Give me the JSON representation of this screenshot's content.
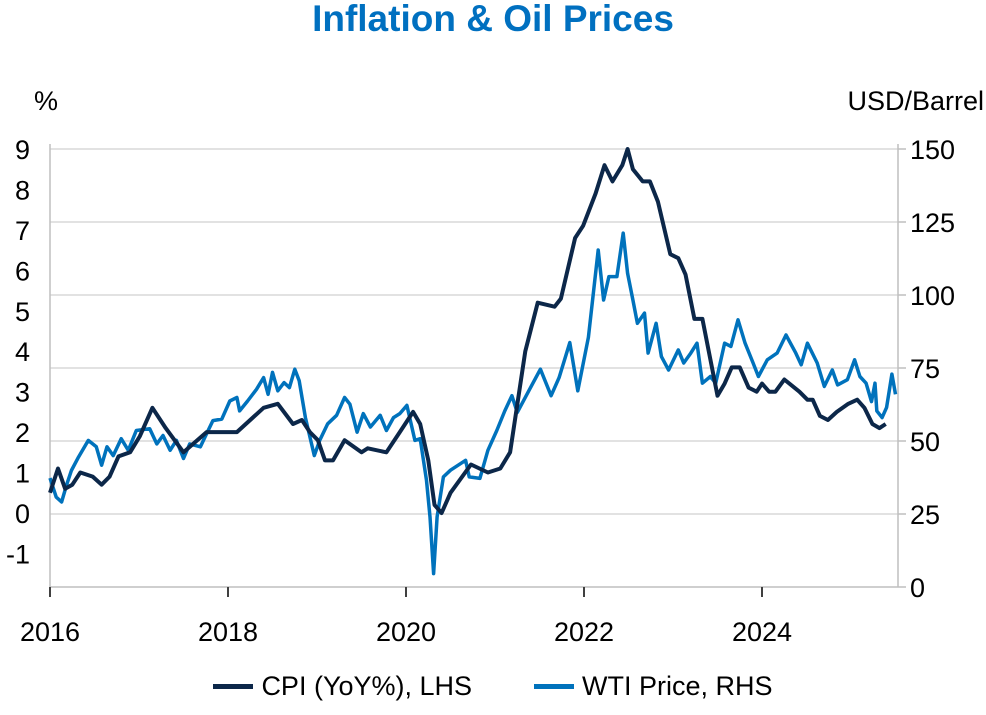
{
  "chart_data": {
    "type": "line",
    "title": "Inflation & Oil Prices",
    "left_axis": {
      "label": "%",
      "ticks": [
        -1,
        0,
        1,
        2,
        3,
        4,
        5,
        6,
        7,
        8,
        9
      ],
      "ylim": [
        -1.83,
        9
      ]
    },
    "right_axis": {
      "label": "USD/Barrel",
      "ticks": [
        0,
        25,
        50,
        75,
        100,
        125,
        150
      ],
      "ylim": [
        0,
        150
      ]
    },
    "x_axis": {
      "ticks": [
        2016,
        2018,
        2020,
        2022,
        2024
      ],
      "xlim": [
        2016,
        2025.55
      ]
    },
    "grid": "horizontal",
    "legend_position": "bottom",
    "series": [
      {
        "name": "CPI (YoY%), LHS",
        "axis": "left",
        "color": "#0c2749",
        "x": [
          2016.0,
          2016.09,
          2016.17,
          2016.25,
          2016.34,
          2016.48,
          2016.58,
          2016.67,
          2016.77,
          2016.9,
          2017.01,
          2017.15,
          2017.3,
          2017.5,
          2017.76,
          2017.91,
          2018.1,
          2018.4,
          2018.56,
          2018.73,
          2018.83,
          2018.92,
          2019.01,
          2019.09,
          2019.18,
          2019.31,
          2019.5,
          2019.57,
          2019.78,
          2019.93,
          2020.08,
          2020.16,
          2020.25,
          2020.32,
          2020.4,
          2020.5,
          2020.73,
          2020.92,
          2021.06,
          2021.17,
          2021.34,
          2021.48,
          2021.67,
          2021.74,
          2021.9,
          2021.99,
          2022.13,
          2022.23,
          2022.32,
          2022.43,
          2022.49,
          2022.55,
          2022.66,
          2022.74,
          2022.83,
          2022.97,
          2023.06,
          2023.14,
          2023.24,
          2023.33,
          2023.5,
          2023.58,
          2023.66,
          2023.75,
          2023.85,
          2023.94,
          2024.0,
          2024.08,
          2024.15,
          2024.25,
          2024.42,
          2024.51,
          2024.57,
          2024.65,
          2024.74,
          2024.84,
          2024.97,
          2025.07,
          2025.15,
          2025.24,
          2025.32,
          2025.39
        ],
        "y": [
          0.5,
          1.1,
          0.6,
          0.7,
          1.0,
          0.9,
          0.7,
          0.9,
          1.4,
          1.5,
          1.9,
          2.6,
          2.1,
          1.5,
          2.0,
          2.0,
          2.0,
          2.6,
          2.7,
          2.2,
          2.3,
          2.0,
          1.8,
          1.3,
          1.3,
          1.8,
          1.5,
          1.6,
          1.5,
          2.0,
          2.5,
          2.2,
          1.3,
          0.2,
          0.0,
          0.5,
          1.2,
          1.0,
          1.1,
          1.5,
          4.0,
          5.2,
          5.1,
          5.3,
          6.8,
          7.1,
          7.9,
          8.6,
          8.2,
          8.6,
          9.0,
          8.5,
          8.2,
          8.2,
          7.7,
          6.4,
          6.3,
          5.9,
          4.8,
          4.8,
          2.9,
          3.2,
          3.6,
          3.6,
          3.1,
          3.0,
          3.2,
          3.0,
          3.0,
          3.3,
          3.0,
          2.8,
          2.8,
          2.4,
          2.3,
          2.5,
          2.7,
          2.8,
          2.6,
          2.2,
          2.1,
          2.2
        ]
      },
      {
        "name": "WTI Price, RHS",
        "axis": "right",
        "color": "#0072bc",
        "x": [
          2016.0,
          2016.07,
          2016.13,
          2016.19,
          2016.24,
          2016.32,
          2016.43,
          2016.52,
          2016.58,
          2016.64,
          2016.71,
          2016.8,
          2016.88,
          2016.97,
          2017.12,
          2017.2,
          2017.27,
          2017.35,
          2017.42,
          2017.5,
          2017.57,
          2017.69,
          2017.74,
          2017.83,
          2017.93,
          2018.02,
          2018.1,
          2018.13,
          2018.22,
          2018.32,
          2018.4,
          2018.45,
          2018.5,
          2018.56,
          2018.63,
          2018.69,
          2018.75,
          2018.8,
          2018.87,
          2018.97,
          2019.03,
          2019.12,
          2019.22,
          2019.31,
          2019.37,
          2019.45,
          2019.52,
          2019.6,
          2019.71,
          2019.78,
          2019.86,
          2019.93,
          2020.01,
          2020.1,
          2020.16,
          2020.23,
          2020.27,
          2020.31,
          2020.35,
          2020.42,
          2020.5,
          2020.67,
          2020.71,
          2020.83,
          2020.92,
          2021.02,
          2021.11,
          2021.19,
          2021.25,
          2021.38,
          2021.51,
          2021.63,
          2021.72,
          2021.84,
          2021.93,
          2022.05,
          2022.16,
          2022.22,
          2022.28,
          2022.37,
          2022.44,
          2022.49,
          2022.55,
          2022.6,
          2022.68,
          2022.72,
          2022.81,
          2022.87,
          2022.95,
          2023.06,
          2023.12,
          2023.2,
          2023.27,
          2023.33,
          2023.42,
          2023.48,
          2023.58,
          2023.65,
          2023.73,
          2023.81,
          2023.9,
          2023.96,
          2024.06,
          2024.17,
          2024.27,
          2024.38,
          2024.44,
          2024.51,
          2024.62,
          2024.7,
          2024.79,
          2024.85,
          2024.96,
          2025.04,
          2025.1,
          2025.17,
          2025.23,
          2025.27,
          2025.29,
          2025.35,
          2025.4,
          2025.46,
          2025.5
        ],
        "y": [
          37.3,
          30.8,
          29.1,
          35.3,
          39.9,
          44.5,
          50.2,
          48.0,
          41.7,
          48.0,
          45.0,
          50.8,
          46.8,
          53.6,
          54.2,
          49.0,
          51.9,
          46.8,
          50.2,
          44.0,
          49.0,
          48.0,
          51.3,
          57.0,
          57.5,
          63.7,
          64.9,
          60.3,
          63.7,
          67.7,
          71.7,
          66.0,
          73.5,
          67.2,
          70.0,
          68.3,
          74.6,
          70.6,
          58.0,
          45.0,
          50.2,
          55.9,
          58.8,
          64.9,
          62.6,
          53.0,
          59.4,
          54.8,
          58.8,
          53.6,
          58.0,
          59.4,
          62.2,
          50.2,
          50.8,
          36.5,
          24.0,
          4.6,
          24.0,
          37.7,
          40.0,
          43.4,
          37.7,
          37.2,
          46.8,
          53.6,
          60.3,
          65.5,
          59.8,
          67.2,
          74.6,
          65.5,
          71.7,
          83.7,
          67.2,
          85.5,
          115.4,
          98.3,
          106.3,
          106.3,
          121.2,
          107.4,
          98.3,
          90.3,
          93.8,
          80.1,
          90.3,
          78.9,
          74.3,
          81.2,
          76.7,
          80.1,
          83.5,
          69.8,
          72.1,
          69.8,
          83.5,
          82.4,
          91.5,
          83.5,
          76.7,
          72.1,
          77.8,
          80.1,
          86.3,
          80.1,
          76.1,
          83.5,
          76.7,
          68.7,
          74.3,
          69.2,
          71.0,
          77.8,
          72.1,
          69.8,
          63.5,
          69.8,
          60.3,
          58.0,
          61.5,
          72.9,
          66.0
        ]
      }
    ]
  }
}
